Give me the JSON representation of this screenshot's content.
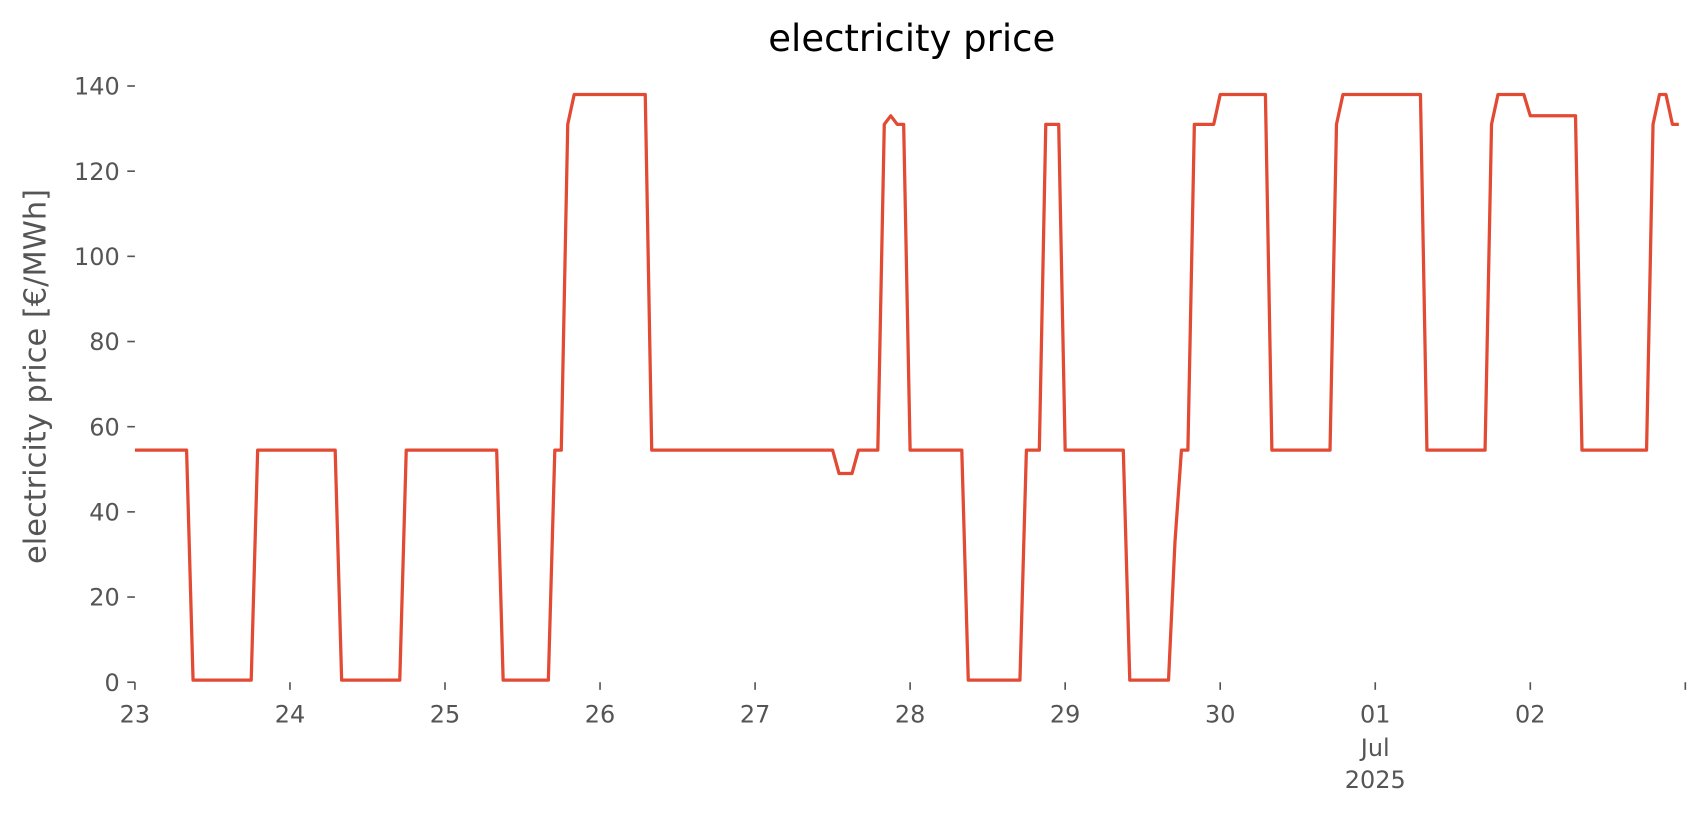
{
  "chart_data": {
    "type": "line",
    "title": "electricity price",
    "y_label": "electricity price [€/MWh]",
    "x": [
      0,
      1,
      2,
      3,
      4,
      5,
      6,
      7,
      8,
      9,
      10,
      11,
      12,
      13,
      14,
      15,
      16,
      17,
      18,
      19,
      20,
      21,
      22,
      23,
      24,
      25,
      26,
      27,
      28,
      29,
      30,
      31,
      32,
      33,
      34,
      35,
      36,
      37,
      38,
      39,
      40,
      41,
      42,
      43,
      44,
      45,
      46,
      47,
      48,
      49,
      50,
      51,
      52,
      53,
      54,
      55,
      56,
      57,
      58,
      59,
      60,
      61,
      62,
      63,
      64,
      65,
      66,
      67,
      68,
      69,
      70,
      71,
      72,
      73,
      74,
      75,
      76,
      77,
      78,
      79,
      80,
      81,
      82,
      83,
      84,
      85,
      86,
      87,
      88,
      89,
      90,
      91,
      92,
      93,
      94,
      95,
      96,
      97,
      98,
      99,
      100,
      101,
      102,
      103,
      104,
      105,
      106,
      107,
      108,
      109,
      110,
      111,
      112,
      113,
      114,
      115,
      116,
      117,
      118,
      119,
      120,
      121,
      122,
      123,
      124,
      125,
      126,
      127,
      128,
      129,
      130,
      131,
      132,
      133,
      134,
      135,
      136,
      137,
      138,
      139,
      140,
      141,
      142,
      143,
      144,
      145,
      146,
      147,
      148,
      149,
      150,
      151,
      152,
      153,
      154,
      155,
      156,
      157,
      158,
      159,
      160,
      161,
      162,
      163,
      164,
      165,
      166,
      167,
      168,
      169,
      170,
      171,
      172,
      173,
      174,
      175,
      176,
      177,
      178,
      179,
      180,
      181,
      182,
      183,
      184,
      185,
      186,
      187,
      188,
      189,
      190,
      191,
      192,
      193,
      194,
      195,
      196,
      197,
      198,
      199,
      200,
      201,
      202,
      203,
      204,
      205,
      206,
      207,
      208,
      209,
      210,
      211,
      212,
      213,
      214,
      215,
      216,
      217,
      218,
      219,
      220,
      221,
      222,
      223,
      224,
      225,
      226,
      227,
      228,
      229,
      230,
      231,
      232,
      233,
      234,
      235,
      236,
      237,
      238,
      239
    ],
    "values": [
      54.5,
      54.5,
      54.5,
      54.5,
      54.5,
      54.5,
      54.5,
      54.5,
      54.5,
      0.5,
      0.5,
      0.5,
      0.5,
      0.5,
      0.5,
      0.5,
      0.5,
      0.5,
      0.5,
      54.5,
      54.5,
      54.5,
      54.5,
      54.5,
      54.5,
      54.5,
      54.5,
      54.5,
      54.5,
      54.5,
      54.5,
      54.5,
      0.5,
      0.5,
      0.5,
      0.5,
      0.5,
      0.5,
      0.5,
      0.5,
      0.5,
      0.5,
      54.5,
      54.5,
      54.5,
      54.5,
      54.5,
      54.5,
      54.5,
      54.5,
      54.5,
      54.5,
      54.5,
      54.5,
      54.5,
      54.5,
      54.5,
      0.5,
      0.5,
      0.5,
      0.5,
      0.5,
      0.5,
      0.5,
      0.5,
      54.5,
      54.5,
      131,
      138,
      138,
      138,
      138,
      138,
      138,
      138,
      138,
      138,
      138,
      138,
      138,
      54.5,
      54.5,
      54.5,
      54.5,
      54.5,
      54.5,
      54.5,
      54.5,
      54.5,
      54.5,
      54.5,
      54.5,
      54.5,
      54.5,
      54.5,
      54.5,
      54.5,
      54.5,
      54.5,
      54.5,
      54.5,
      54.5,
      54.5,
      54.5,
      54.5,
      54.5,
      54.5,
      54.5,
      54.5,
      49,
      49,
      49,
      54.5,
      54.5,
      54.5,
      54.5,
      131,
      133,
      131,
      131,
      54.5,
      54.5,
      54.5,
      54.5,
      54.5,
      54.5,
      54.5,
      54.5,
      54.5,
      0.5,
      0.5,
      0.5,
      0.5,
      0.5,
      0.5,
      0.5,
      0.5,
      0.5,
      54.5,
      54.5,
      54.5,
      131,
      131,
      131,
      54.5,
      54.5,
      54.5,
      54.5,
      54.5,
      54.5,
      54.5,
      54.5,
      54.5,
      54.5,
      0.5,
      0.5,
      0.5,
      0.5,
      0.5,
      0.5,
      0.5,
      33,
      54.5,
      54.5,
      131,
      131,
      131,
      131,
      138,
      138,
      138,
      138,
      138,
      138,
      138,
      138,
      54.5,
      54.5,
      54.5,
      54.5,
      54.5,
      54.5,
      54.5,
      54.5,
      54.5,
      54.5,
      131,
      138,
      138,
      138,
      138,
      138,
      138,
      138,
      138,
      138,
      138,
      138,
      138,
      138,
      54.5,
      54.5,
      54.5,
      54.5,
      54.5,
      54.5,
      54.5,
      54.5,
      54.5,
      54.5,
      131,
      138,
      138,
      138,
      138,
      138,
      133,
      133,
      133,
      133,
      133,
      133,
      133,
      133,
      54.5,
      54.5,
      54.5,
      54.5,
      54.5,
      54.5,
      54.5,
      54.5,
      54.5,
      54.5,
      54.5,
      131,
      138,
      138,
      131,
      131
    ],
    "color": "#e24a33",
    "xlim": [
      0,
      240
    ],
    "xticks": [
      {
        "value": 0,
        "label": "23"
      },
      {
        "value": 24,
        "label": "24"
      },
      {
        "value": 48,
        "label": "25"
      },
      {
        "value": 72,
        "label": "26"
      },
      {
        "value": 96,
        "label": "27"
      },
      {
        "value": 120,
        "label": "28"
      },
      {
        "value": 144,
        "label": "29"
      },
      {
        "value": 168,
        "label": "30"
      },
      {
        "value": 192,
        "label": "01",
        "sublabels": [
          "Jul",
          "2025"
        ]
      },
      {
        "value": 216,
        "label": "02"
      },
      {
        "value": 240,
        "label": null
      }
    ],
    "ylim": [
      0,
      140
    ],
    "yticks": [
      0,
      20,
      40,
      60,
      80,
      100,
      120,
      140
    ]
  }
}
